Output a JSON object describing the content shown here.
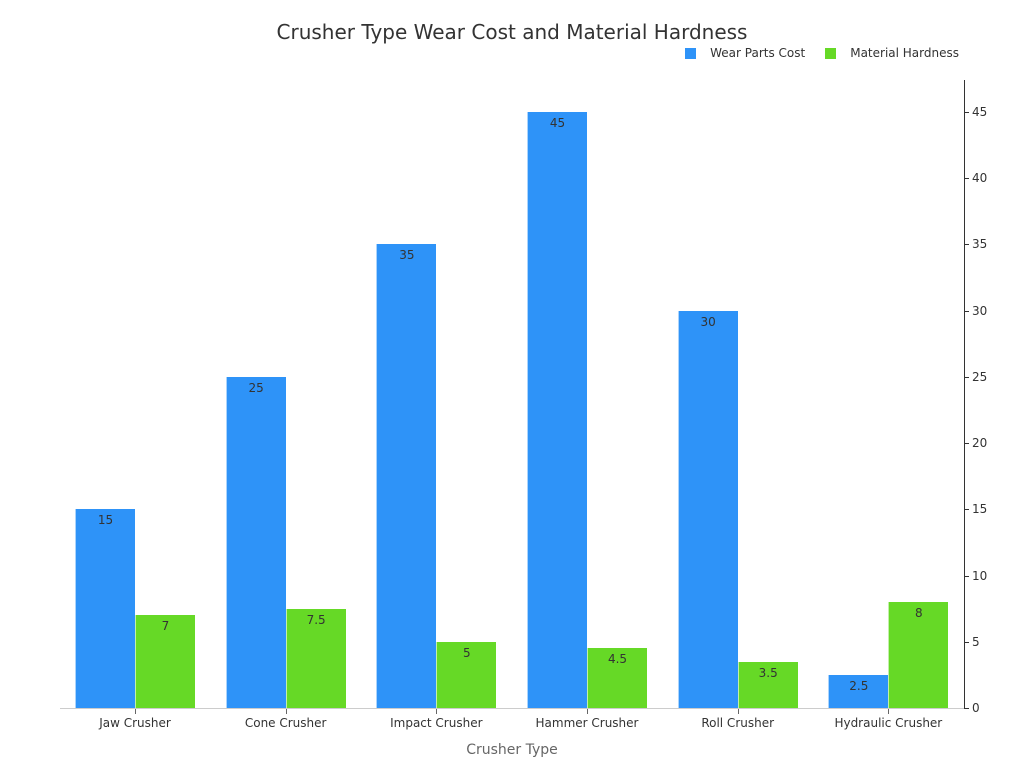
{
  "chart_data": {
    "type": "bar",
    "title": "Crusher Type Wear Cost and Material Hardness",
    "xlabel": "Crusher Type",
    "ylabel": "",
    "categories": [
      "Jaw Crusher",
      "Cone Crusher",
      "Impact Crusher",
      "Hammer Crusher",
      "Roll Crusher",
      "Hydraulic Crusher"
    ],
    "series": [
      {
        "name": "Wear Parts Cost",
        "color": "#2e93f8",
        "values": [
          15,
          25,
          35,
          45,
          30,
          2.5
        ]
      },
      {
        "name": "Material Hardness",
        "color": "#66d926",
        "values": [
          7,
          7.5,
          5,
          4.5,
          3.5,
          8
        ]
      }
    ],
    "ylim": [
      0,
      47.5
    ],
    "yticks": [
      0,
      5,
      10,
      15,
      20,
      25,
      30,
      35,
      40,
      45
    ],
    "yaxis_position": "right",
    "grid": false,
    "legend_position": "top-right"
  }
}
